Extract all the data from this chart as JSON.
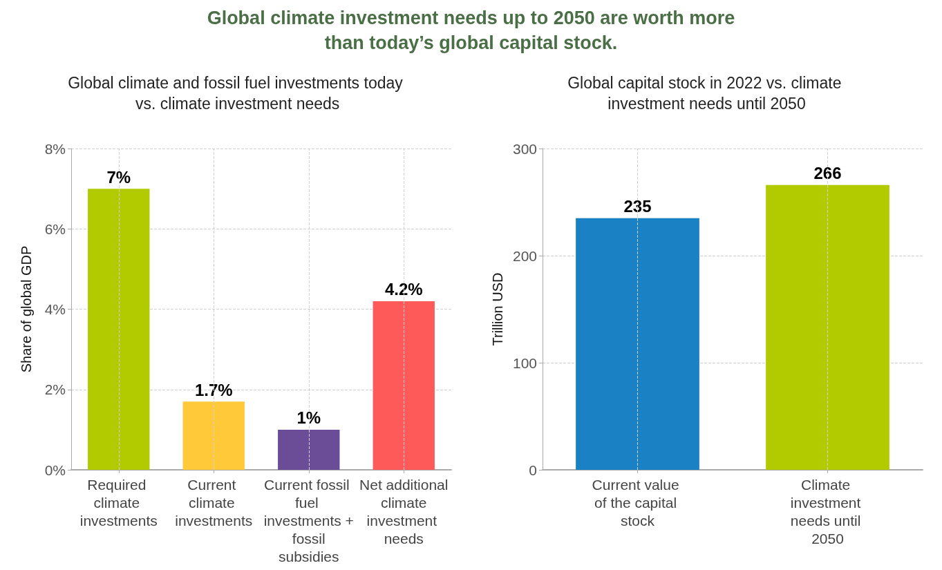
{
  "chart_data": [
    {
      "type": "bar",
      "title": "Global climate and fossil fuel investments today vs. climate investment needs",
      "ylabel": "Share of global GDP",
      "annotations": [
        "Global climate investment needs up to 2050 are worth more than today’s global capital stock."
      ],
      "categories": [
        "Required climate investments",
        "Current climate investments",
        "Current fossil fuel investments + fossil subsidies",
        "Net additional climate investment needs"
      ],
      "values": [
        7,
        1.7,
        1,
        4.2
      ],
      "colors": [
        "#b2cb00",
        "#ffc93a",
        "#6b4c96",
        "#ff5a5a"
      ],
      "value_labels": [
        "7%",
        "1.7%",
        "1%",
        "4.2%"
      ],
      "ylim": [
        0,
        8
      ],
      "yticks": [
        {
          "value": 0,
          "label": "0%"
        },
        {
          "value": 2,
          "label": "2%"
        },
        {
          "value": 4,
          "label": "4%"
        },
        {
          "value": 6,
          "label": "6%"
        },
        {
          "value": 8,
          "label": "8%"
        }
      ],
      "grid": true
    },
    {
      "type": "bar",
      "title": "Global capital stock in 2022 vs. climate investment needs until 2050",
      "ylabel": "Trillion USD",
      "categories": [
        "Current value of the capital stock",
        "Climate investment needs until 2050"
      ],
      "values": [
        235,
        266
      ],
      "colors": [
        "#1a82c4",
        "#b2cb00"
      ],
      "data_labels": true,
      "ylim": [
        0,
        300
      ],
      "yticks": [
        0,
        100,
        200,
        300
      ],
      "grid": true
    }
  ]
}
